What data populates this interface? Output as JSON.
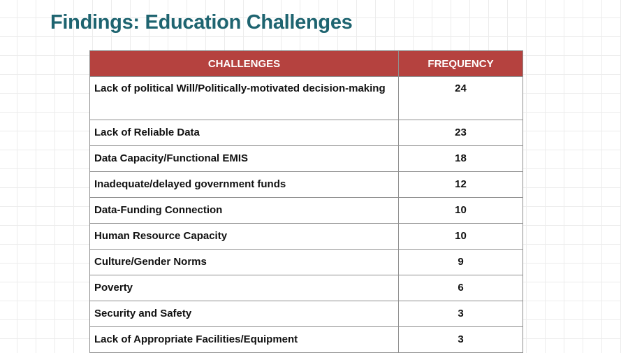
{
  "slide": {
    "title": "Findings: Education Challenges"
  },
  "table": {
    "headers": {
      "challenges": "CHALLENGES",
      "frequency": "FREQUENCY"
    },
    "rows": [
      {
        "challenge": "Lack of political Will/Politically-motivated decision-making",
        "frequency": "24"
      },
      {
        "challenge": "Lack of Reliable Data",
        "frequency": "23"
      },
      {
        "challenge": "Data Capacity/Functional EMIS",
        "frequency": "18"
      },
      {
        "challenge": "Inadequate/delayed government funds",
        "frequency": "12"
      },
      {
        "challenge": "Data-Funding Connection",
        "frequency": "10"
      },
      {
        "challenge": "Human Resource Capacity",
        "frequency": "10"
      },
      {
        "challenge": "Culture/Gender Norms",
        "frequency": "9"
      },
      {
        "challenge": "Poverty",
        "frequency": "6"
      },
      {
        "challenge": "Security and Safety",
        "frequency": "3"
      },
      {
        "challenge": "Lack of Appropriate Facilities/Equipment",
        "frequency": "3"
      }
    ]
  },
  "colors": {
    "title": "#1e6470",
    "header_background": "#b5423f",
    "header_text": "#ffffff",
    "border": "#8f8f8f"
  }
}
